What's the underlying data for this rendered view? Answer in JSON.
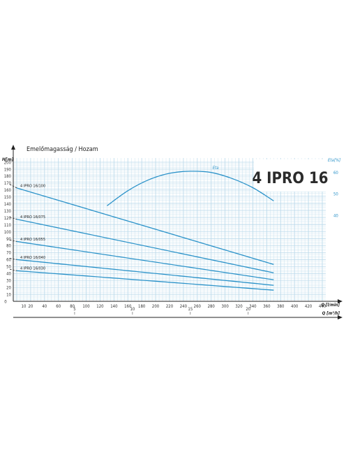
{
  "chart_data": {
    "type": "line",
    "title": "Emelőmagasság / Hozam",
    "model_title": "4 IPRO 16",
    "ylabel": "H[m]",
    "xlabel_lmin": "Q [l/min]",
    "xlabel_m3h": "Q [m³/h]",
    "y2label": "Eta[%]",
    "ylim": [
      0,
      200
    ],
    "xlim": [
      0,
      460
    ],
    "x_ticks": [
      10,
      20,
      40,
      60,
      80,
      100,
      120,
      140,
      160,
      180,
      200,
      220,
      240,
      260,
      280,
      300,
      320,
      340,
      360,
      380,
      400,
      420,
      440
    ],
    "y_ticks": [
      10,
      20,
      30,
      40,
      50,
      60,
      70,
      80,
      90,
      100,
      110,
      120,
      130,
      140,
      150,
      160,
      170,
      180,
      190,
      200
    ],
    "m3h_ticks": [
      5,
      10,
      15,
      20
    ],
    "eta_ticks": [
      40,
      50,
      60
    ],
    "eta_axis_range": [
      0,
      70
    ],
    "grid": true,
    "series": [
      {
        "name": "4 IPRO 16/100",
        "x": [
          0,
          370
        ],
        "y": [
          163,
          53
        ],
        "dash_x": [
          -10,
          0
        ],
        "dash_y": [
          168,
          163
        ]
      },
      {
        "name": "4 IPRO 16/075",
        "x": [
          0,
          370
        ],
        "y": [
          118,
          41
        ],
        "dash_x": [
          -10,
          0
        ],
        "dash_y": [
          121,
          118
        ]
      },
      {
        "name": "4 IPRO 16/055",
        "x": [
          0,
          370
        ],
        "y": [
          86,
          31
        ],
        "dash_x": [
          -10,
          0
        ],
        "dash_y": [
          88,
          86
        ]
      },
      {
        "name": "4 IPRO 16/040",
        "x": [
          0,
          370
        ],
        "y": [
          60,
          23
        ],
        "dash_x": [
          -10,
          0
        ],
        "dash_y": [
          62,
          60
        ]
      },
      {
        "name": "4 IPRO 16/030",
        "x": [
          0,
          370
        ],
        "y": [
          44,
          16
        ],
        "dash_x": [
          -10,
          0
        ],
        "dash_y": [
          46,
          44
        ]
      }
    ],
    "eta_series": {
      "name": "Eta",
      "x": [
        130,
        160,
        190,
        220,
        250,
        280,
        310,
        340,
        370
      ],
      "y": [
        44.5,
        51.5,
        56.6,
        59.6,
        60.6,
        60,
        57.2,
        52.9,
        46.8
      ]
    },
    "colors": {
      "curve": "#2c93c9",
      "grid": "#b8d8ea",
      "axis": "#222222",
      "eta_axis": "#2c93c9"
    }
  }
}
